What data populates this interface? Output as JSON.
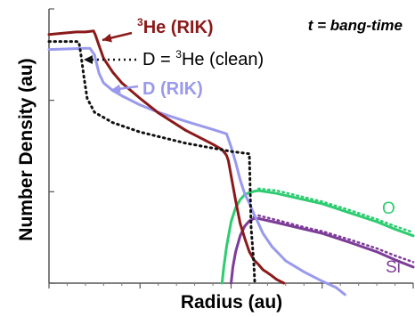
{
  "chart_data": {
    "type": "line",
    "xlabel": "Radius (au)",
    "ylabel": "Number Density (au)",
    "x_scale": "linear",
    "y_scale": "log",
    "xlim": [
      0,
      400
    ],
    "ylim": [
      0.001,
      1
    ],
    "x_ticks": [
      0,
      100,
      200,
      300,
      400
    ],
    "y_ticks": [
      0.001,
      0.01,
      0.1,
      1
    ],
    "tick_labels_shown": false,
    "grid": false,
    "annotation": "t = bang-time",
    "colors": {
      "he3_rik": "#8b1a1a",
      "d_rik": "#9999ee",
      "d_clean": "#111111",
      "o": "#2ecc71",
      "si": "#7d3c98"
    },
    "series": [
      {
        "key": "he3_rik",
        "name": "³He (RIK)",
        "label_parts": {
          "sup": "3",
          "text": "He (RIK)"
        },
        "x": [
          0,
          30,
          40,
          45,
          49,
          51,
          55,
          60,
          70,
          80,
          100,
          120,
          150,
          180,
          190,
          195,
          197,
          200,
          205,
          210,
          215,
          220,
          225,
          230,
          235,
          240,
          245,
          250,
          258
        ],
        "y": [
          0.525,
          0.56,
          0.56,
          0.567,
          0.573,
          0.52,
          0.398,
          0.288,
          0.203,
          0.155,
          0.105,
          0.073,
          0.047,
          0.033,
          0.029,
          0.025,
          0.022,
          0.015,
          0.008,
          0.0045,
          0.0031,
          0.0022,
          0.0018,
          0.0016,
          0.0014,
          0.0013,
          0.0012,
          0.0011,
          0.001
        ]
      },
      {
        "key": "d_clean",
        "name": "D = ³He (clean)",
        "label_parts": {
          "pre": "D = ",
          "sup": "3",
          "text": "He (clean)"
        },
        "x": [
          0,
          20,
          30,
          33,
          35,
          38,
          42,
          50,
          70,
          100,
          150,
          200,
          220,
          221,
          222,
          225,
          226
        ],
        "y": [
          0.44,
          0.44,
          0.44,
          0.43,
          0.32,
          0.19,
          0.105,
          0.074,
          0.057,
          0.045,
          0.034,
          0.0276,
          0.026,
          0.01,
          0.004,
          0.0016,
          0.001
        ]
      },
      {
        "key": "d_rik",
        "name": "D (RIK)",
        "label_parts": {
          "text": "D (RIK)"
        },
        "x": [
          0,
          40,
          45,
          50,
          52,
          55,
          60,
          70,
          80,
          100,
          120,
          150,
          180,
          195,
          200,
          205,
          210,
          215,
          220,
          225,
          230,
          235,
          245,
          260,
          280,
          300,
          315,
          325
        ],
        "y": [
          0.36,
          0.37,
          0.37,
          0.315,
          0.26,
          0.197,
          0.155,
          0.128,
          0.112,
          0.089,
          0.074,
          0.059,
          0.048,
          0.043,
          0.031,
          0.021,
          0.0135,
          0.0095,
          0.0075,
          0.0057,
          0.0045,
          0.0035,
          0.0025,
          0.00175,
          0.00133,
          0.00105,
          0.0009,
          0.00075
        ]
      },
      {
        "key": "o",
        "name": "O",
        "label_parts": {
          "text": "O"
        },
        "x": [
          190,
          192,
          195,
          200,
          205,
          210,
          215,
          220,
          225,
          230,
          250,
          280,
          300,
          330,
          360,
          380,
          400
        ],
        "y": [
          0.001,
          0.0015,
          0.0025,
          0.0047,
          0.0067,
          0.0082,
          0.0093,
          0.0098,
          0.0101,
          0.0103,
          0.0096,
          0.0082,
          0.0074,
          0.0059,
          0.0047,
          0.0039,
          0.0033
        ]
      },
      {
        "key": "o_clean",
        "name": "",
        "style": "dotted",
        "x": [
          230,
          250,
          280,
          300,
          330,
          360,
          380,
          400
        ],
        "y": [
          0.0108,
          0.0103,
          0.0087,
          0.0078,
          0.0063,
          0.005,
          0.0042,
          0.0036
        ]
      },
      {
        "key": "si",
        "name": "Si",
        "label_parts": {
          "text": "Si"
        },
        "x": [
          200,
          202,
          205,
          210,
          215,
          220,
          225,
          230,
          250,
          280,
          300,
          330,
          360,
          380,
          400
        ],
        "y": [
          0.001,
          0.0015,
          0.0022,
          0.0033,
          0.0042,
          0.0048,
          0.0051,
          0.0051,
          0.0046,
          0.0039,
          0.0035,
          0.0028,
          0.0022,
          0.0018,
          0.0015
        ]
      },
      {
        "key": "si_clean",
        "name": "",
        "style": "dotted",
        "x": [
          225,
          230,
          250,
          280,
          300,
          330,
          360,
          380,
          400
        ],
        "y": [
          0.0053,
          0.0055,
          0.0049,
          0.0041,
          0.0037,
          0.003,
          0.0024,
          0.002,
          0.0017
        ]
      }
    ]
  }
}
